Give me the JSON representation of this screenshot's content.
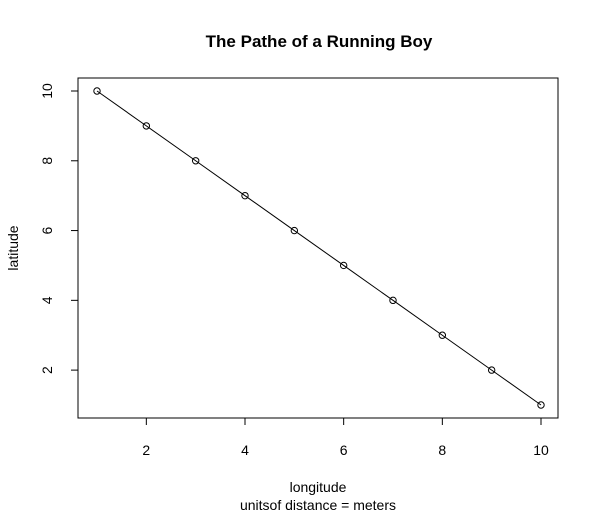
{
  "chart_data": {
    "type": "line",
    "markers": "open-circle",
    "title": "The Pathe of a Running Boy",
    "xlabel": "longitude",
    "subtitle": "unitsof distance = meters",
    "ylabel": "latitude",
    "x": [
      1,
      2,
      3,
      4,
      5,
      6,
      7,
      8,
      9,
      10
    ],
    "y": [
      10,
      9,
      8,
      7,
      6,
      5,
      4,
      3,
      2,
      1
    ],
    "xlim": [
      1,
      10
    ],
    "ylim": [
      1,
      10
    ],
    "x_ticks": [
      2,
      4,
      6,
      8,
      10
    ],
    "y_ticks": [
      2,
      4,
      6,
      8,
      10
    ],
    "x_tick_labels": [
      "2",
      "4",
      "6",
      "8",
      "10"
    ],
    "y_tick_labels": [
      "2",
      "4",
      "6",
      "8",
      "10"
    ],
    "grid": false,
    "line_color": "#000000",
    "background": "#ffffff"
  }
}
